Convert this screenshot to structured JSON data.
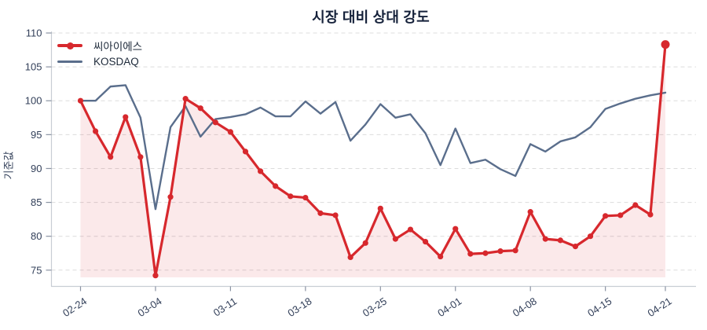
{
  "title": "시장 대비 상대 강도",
  "y_axis_label": "기준값",
  "legend": {
    "items": [
      {
        "label": "씨아이에스",
        "color": "#d7282d",
        "marker": true
      },
      {
        "label": "KOSDAQ",
        "color": "#5a6e8c",
        "marker": false
      }
    ]
  },
  "colors": {
    "series_red": "#d7282d",
    "series_red_fill": "rgba(214,40,45,0.10)",
    "series_gray": "#5a6e8c",
    "grid": "#dcdcdc",
    "axis": "#c8cdd4",
    "tick": "#8a93a3",
    "tick_text": "#33405a",
    "title_text": "#15213a"
  },
  "chart_data": {
    "type": "line",
    "title": "시장 대비 상대 강도",
    "xlabel": "",
    "ylabel": "기준값",
    "grid": true,
    "legend_position": "top-left",
    "ylim": [
      73.5,
      110.8
    ],
    "y_ticks": [
      75,
      80,
      85,
      90,
      95,
      100,
      105,
      110
    ],
    "x": [
      "02-24",
      "02-25",
      "02-26",
      "02-27",
      "02-28",
      "03-04",
      "03-05",
      "03-06",
      "03-07",
      "03-10",
      "03-11",
      "03-12",
      "03-13",
      "03-14",
      "03-17",
      "03-18",
      "03-19",
      "03-20",
      "03-21",
      "03-24",
      "03-25",
      "03-26",
      "03-27",
      "03-28",
      "03-31",
      "04-01",
      "04-02",
      "04-03",
      "04-04",
      "04-07",
      "04-08",
      "04-09",
      "04-10",
      "04-11",
      "04-14",
      "04-15",
      "04-16",
      "04-17",
      "04-18",
      "04-21"
    ],
    "x_tick_indices": [
      0,
      5,
      10,
      15,
      20,
      25,
      30,
      35,
      39
    ],
    "x_tick_labels": [
      "02-24",
      "03-04",
      "03-11",
      "03-18",
      "03-25",
      "04-01",
      "04-08",
      "04-15",
      "04-21"
    ],
    "series": [
      {
        "name": "씨아이에스",
        "color": "#d7282d",
        "marker": "circle",
        "area_fill": true,
        "values": [
          100.0,
          95.5,
          91.7,
          97.6,
          91.7,
          74.2,
          85.8,
          100.3,
          98.9,
          96.8,
          95.4,
          92.5,
          89.6,
          87.4,
          85.9,
          85.7,
          83.4,
          83.1,
          76.9,
          79.0,
          84.1,
          79.6,
          81.0,
          79.2,
          77.0,
          81.1,
          77.4,
          77.5,
          77.8,
          77.9,
          83.6,
          79.6,
          79.4,
          78.5,
          80.0,
          83.0,
          83.1,
          84.6,
          83.2,
          108.3
        ]
      },
      {
        "name": "KOSDAQ",
        "color": "#5a6e8c",
        "marker": "none",
        "area_fill": false,
        "values": [
          100.0,
          100.0,
          102.1,
          102.3,
          97.5,
          84.0,
          96.1,
          99.2,
          94.7,
          97.3,
          97.6,
          98.0,
          99.0,
          97.7,
          97.7,
          99.9,
          98.1,
          99.8,
          94.1,
          96.5,
          99.5,
          97.5,
          98.0,
          95.2,
          90.5,
          95.9,
          90.8,
          91.3,
          89.9,
          88.9,
          93.6,
          92.5,
          94.0,
          94.6,
          96.1,
          98.8,
          99.6,
          100.3,
          100.8,
          101.2
        ]
      }
    ]
  }
}
